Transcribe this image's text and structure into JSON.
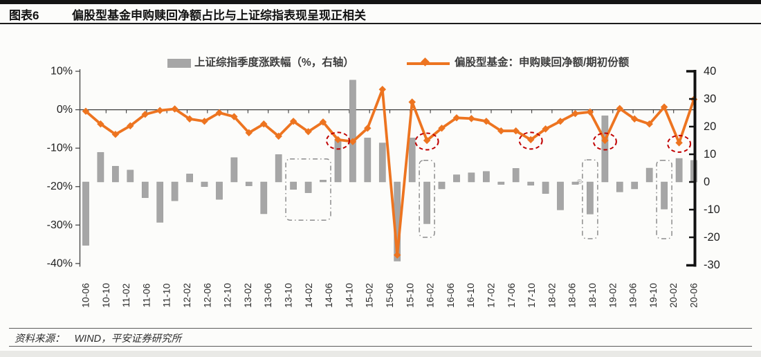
{
  "header": {
    "tag": "图表6",
    "title": "偏股型基金申购赎回净额占比与上证综指表现呈现正相关"
  },
  "legend": [
    {
      "label": "上证综指季度涨跌幅（%，右轴）",
      "swatch": "gray-bar"
    },
    {
      "label": "偏股型基金：申购赎回净额/期初份额",
      "swatch": "orange-line-diamond"
    }
  ],
  "footer": {
    "prefix": "资料来源：",
    "source": "WIND，平安证券研究所"
  },
  "watermark": "®",
  "colors": {
    "bar_gray": "#A6A6A6",
    "line_orange": "#ED7420",
    "annotation_red": "#C00000",
    "annotation_box_gray": "#8C8C8C",
    "axis_dark": "#3d3d3d",
    "axis_black": "#111111",
    "tick_text": "#1f1f1f"
  },
  "chart_data": {
    "type": "combo",
    "title": "偏股型基金申购赎回净额占比与上证综指表现呈现正相关",
    "grid": false,
    "legend_position": "top",
    "x_quarters": [
      "2010Q2",
      "2010Q3",
      "2010Q4",
      "2011Q1",
      "2011Q2",
      "2011Q3",
      "2011Q4",
      "2012Q1",
      "2012Q2",
      "2012Q3",
      "2012Q4",
      "2013Q1",
      "2013Q2",
      "2013Q3",
      "2013Q4",
      "2014Q1",
      "2014Q2",
      "2014Q3",
      "2014Q4",
      "2015Q1",
      "2015Q2",
      "2015Q3",
      "2015Q4",
      "2016Q1",
      "2016Q2",
      "2016Q3",
      "2016Q4",
      "2017Q1",
      "2017Q2",
      "2017Q3",
      "2017Q4",
      "2018Q1",
      "2018Q2",
      "2018Q3",
      "2018Q4",
      "2019Q1",
      "2019Q2",
      "2019Q3",
      "2019Q4",
      "2020Q1",
      "2020Q2",
      "2020Q3"
    ],
    "x_axis_tick_labels": [
      "10-06",
      "10-10",
      "11-02",
      "11-06",
      "11-10",
      "12-02",
      "12-06",
      "12-10",
      "13-02",
      "13-06",
      "13-10",
      "14-02",
      "14-06",
      "14-10",
      "15-02",
      "15-06",
      "15-10",
      "16-02",
      "16-06",
      "16-10",
      "17-02",
      "17-06",
      "17-10",
      "18-02",
      "18-06",
      "18-10",
      "19-02",
      "19-06",
      "19-10",
      "20-02",
      "20-06"
    ],
    "series": [
      {
        "name": "上证综指季度涨跌幅（%，右轴）",
        "type": "bar",
        "axis": "right",
        "color": "#A6A6A6",
        "values": [
          -22.9,
          10.7,
          5.7,
          4.3,
          -5.7,
          -14.6,
          -6.8,
          2.9,
          -1.7,
          -6.3,
          8.8,
          -1.4,
          -11.5,
          9.9,
          -2.7,
          -3.9,
          0.7,
          15.4,
          36.8,
          15.9,
          14.1,
          -28.6,
          15.9,
          -15.1,
          -2.5,
          2.6,
          3.3,
          3.8,
          -0.9,
          4.9,
          -1.2,
          -4.2,
          -10.1,
          -0.9,
          -11.6,
          23.9,
          -3.6,
          -2.5,
          5.0,
          -9.8,
          8.5,
          7.8
        ]
      },
      {
        "name": "偏股型基金：申购赎回净额/期初份额",
        "type": "line",
        "axis": "left",
        "color": "#ED7420",
        "values": [
          -0.4,
          -3.7,
          -6.4,
          -4.2,
          -1.2,
          -0.2,
          0.2,
          -2.4,
          -3.0,
          -0.8,
          -1.8,
          -6.0,
          -3.7,
          -6.9,
          -3.0,
          -5.7,
          -3.2,
          -7.8,
          -8.3,
          -4.8,
          5.3,
          -37.8,
          2.0,
          -8.0,
          -4.8,
          -2.1,
          -2.3,
          -3.0,
          -5.5,
          -5.5,
          -7.8,
          -5.0,
          -3.0,
          -1.0,
          -0.6,
          -8.0,
          0.3,
          -2.4,
          -3.7,
          0.7,
          -8.6,
          2.7
        ]
      }
    ],
    "left_axis": {
      "unit": "%",
      "min": -40,
      "max": 10,
      "step": 10,
      "tick_values": [
        10,
        0,
        -10,
        -20,
        -30,
        -40
      ],
      "tick_labels": [
        "10%",
        "0%",
        "-10%",
        "-20%",
        "-30%",
        "-40%"
      ]
    },
    "right_axis": {
      "min": -30,
      "max": 40,
      "step": 10,
      "tick_values": [
        40,
        30,
        20,
        10,
        0,
        -10,
        -20,
        -30
      ],
      "tick_labels": [
        "40",
        "30",
        "20",
        "10",
        "0",
        "-10",
        "-20",
        "-30"
      ]
    },
    "annotations": {
      "red_dashed_circle_point_indexes": [
        17,
        23,
        30,
        35,
        40
      ],
      "gray_dashed_boxes": [
        {
          "from_index": 14,
          "to_index": 16,
          "top_value": 8.3,
          "bottom_value": -13.8
        },
        {
          "from_index": 23,
          "to_index": 23,
          "top_value": 7.8,
          "bottom_value": -20.0
        },
        {
          "from_index": 34,
          "to_index": 34,
          "top_value": 8.0,
          "bottom_value": -20.5
        },
        {
          "from_index": 39,
          "to_index": 39,
          "top_value": 7.8,
          "bottom_value": -20.5
        }
      ]
    }
  }
}
